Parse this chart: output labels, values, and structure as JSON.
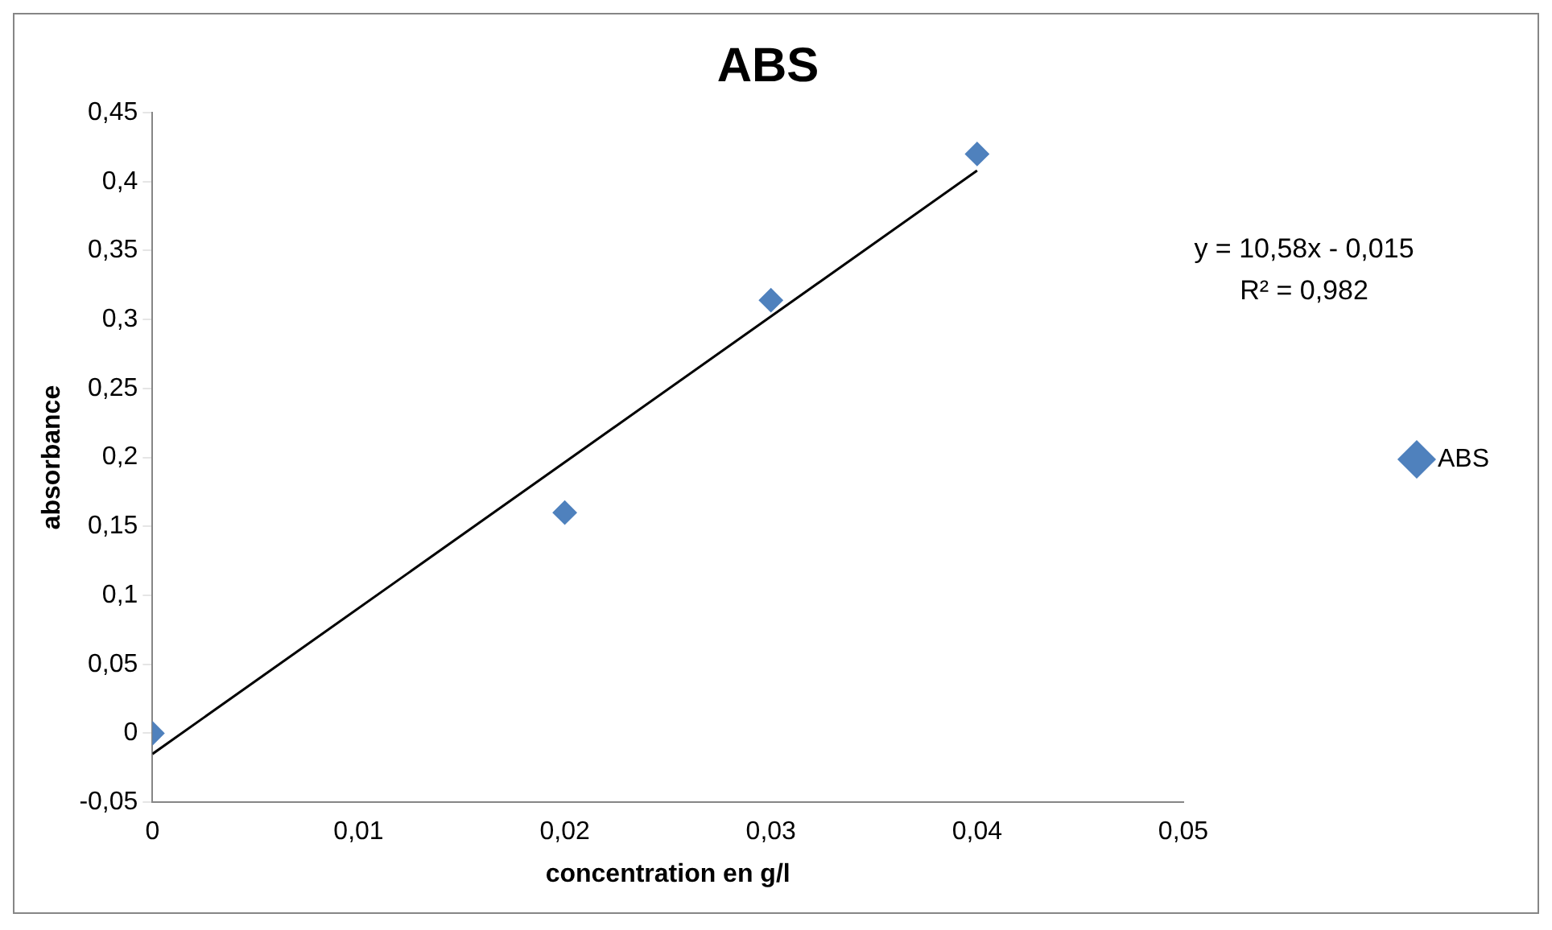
{
  "chart_data": {
    "type": "scatter",
    "title": "ABS",
    "xlabel": "concentration en g/l",
    "ylabel": "absorbance",
    "series": [
      {
        "name": "ABS",
        "type": "scatter",
        "color": "#4f81bd",
        "x": [
          0,
          0.02,
          0.03,
          0.04
        ],
        "values": [
          0,
          0.16,
          0.314,
          0.42
        ]
      },
      {
        "type": "line",
        "color": "#000000",
        "x": [
          0,
          0.04
        ],
        "values": [
          -0.015,
          0.408
        ],
        "marker": "none"
      }
    ],
    "xlim": [
      0,
      0.05
    ],
    "xticks": [
      0,
      {
        "value": 0.01,
        "label": "0,01"
      },
      {
        "value": 0.02,
        "label": "0,02"
      },
      {
        "value": 0.03,
        "label": "0,03"
      },
      {
        "value": 0.04,
        "label": "0,04"
      },
      {
        "value": 0.05,
        "label": "0,05"
      }
    ],
    "ylim": [
      -0.05,
      0.45
    ],
    "yticks": [
      {
        "value": -0.05,
        "label": "-0,05"
      },
      0,
      {
        "value": 0.05,
        "label": "0,05"
      },
      {
        "value": 0.1,
        "label": "0,1"
      },
      {
        "value": 0.15,
        "label": "0,15"
      },
      {
        "value": 0.2,
        "label": "0,2"
      },
      {
        "value": 0.25,
        "label": "0,25"
      },
      {
        "value": 0.3,
        "label": "0,3"
      },
      {
        "value": 0.35,
        "label": "0,35"
      },
      {
        "value": 0.4,
        "label": "0,4"
      },
      {
        "value": 0.45,
        "label": "0,45"
      }
    ],
    "grid": false,
    "legend": "right",
    "marker": "diamond",
    "annotations": [
      "y = 10,58x - 0,015",
      "R² = 0,982"
    ]
  }
}
